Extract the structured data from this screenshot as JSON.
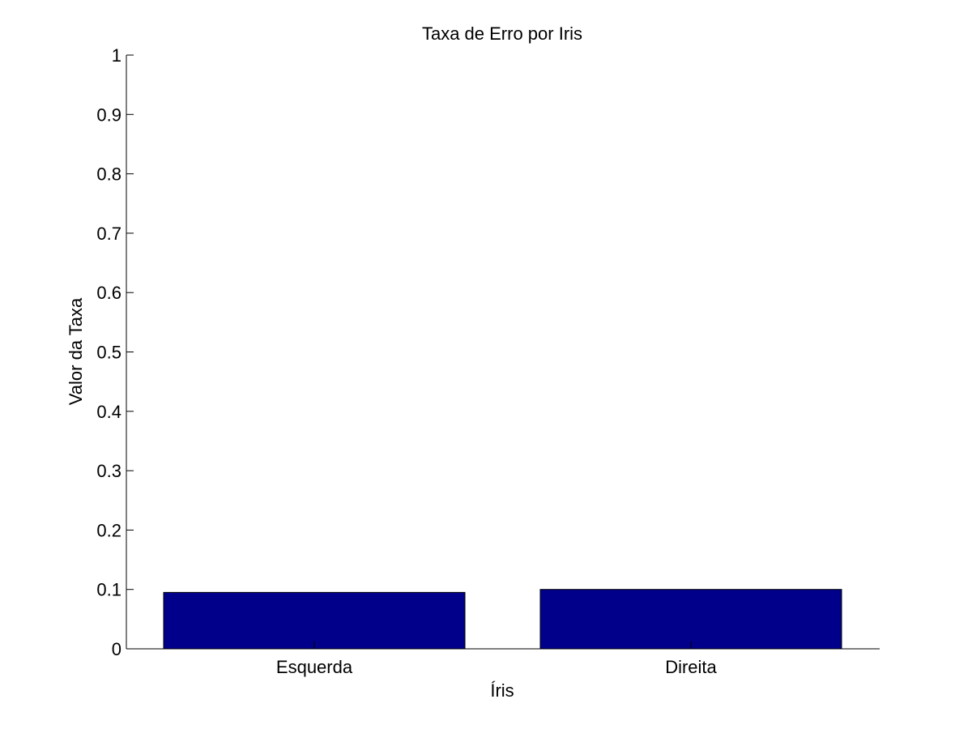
{
  "chart_data": {
    "type": "bar",
    "title": "Taxa de Erro por Iris",
    "xlabel": "Íris",
    "ylabel": "Valor da Taxa",
    "categories": [
      "Esquerda",
      "Direita"
    ],
    "values": [
      0.095,
      0.1
    ],
    "ylim": [
      0,
      1
    ],
    "yticks": [
      0,
      0.1,
      0.2,
      0.3,
      0.4,
      0.5,
      0.6,
      0.7,
      0.8,
      0.9,
      1
    ],
    "ytick_labels": [
      "0",
      "0.1",
      "0.2",
      "0.3",
      "0.4",
      "0.5",
      "0.6",
      "0.7",
      "0.8",
      "0.9",
      "1"
    ],
    "bar_color": "#00008B",
    "grid": false,
    "legend": false
  }
}
